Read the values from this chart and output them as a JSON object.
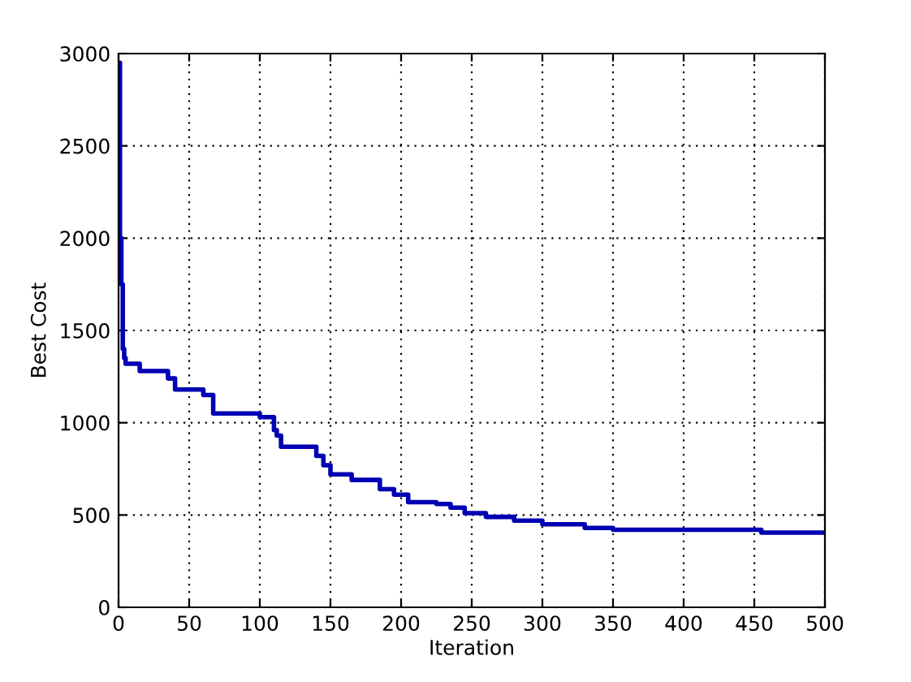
{
  "chart_data": {
    "type": "step",
    "xlabel": "Iteration",
    "ylabel": "Best Cost",
    "x": [
      0,
      1,
      2,
      3,
      4,
      5,
      15,
      35,
      40,
      60,
      67,
      100,
      110,
      112,
      115,
      140,
      145,
      150,
      165,
      185,
      195,
      205,
      225,
      235,
      245,
      260,
      280,
      300,
      330,
      350,
      455,
      500
    ],
    "series": [
      {
        "color": "#0000b4",
        "values": [
          2950,
          2000,
          1750,
          1400,
          1350,
          1320,
          1280,
          1240,
          1180,
          1150,
          1050,
          1030,
          960,
          930,
          870,
          820,
          770,
          720,
          690,
          640,
          610,
          570,
          560,
          540,
          510,
          490,
          470,
          450,
          430,
          420,
          405,
          405
        ]
      }
    ],
    "xlim": [
      0,
      500
    ],
    "ylim": [
      0,
      3000
    ],
    "xticks": [
      0,
      50,
      100,
      150,
      200,
      250,
      300,
      350,
      400,
      450,
      500
    ],
    "yticks": [
      0,
      500,
      1000,
      1500,
      2000,
      2500,
      3000
    ],
    "grid": true,
    "legend": false
  }
}
